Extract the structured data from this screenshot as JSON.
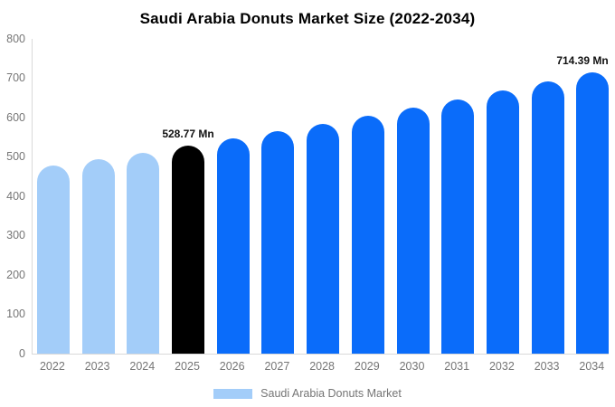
{
  "chart": {
    "title": "Saudi Arabia Donuts Market Size (2022-2034)",
    "legend": "Saudi Arabia Donuts Market"
  },
  "chart_data": {
    "type": "bar",
    "title": "Saudi Arabia Donuts Market Size (2022-2034)",
    "unit": "Mn",
    "xlabel": "",
    "ylabel": "",
    "ylim": [
      0,
      800
    ],
    "yticks": [
      0,
      100,
      200,
      300,
      400,
      500,
      600,
      700,
      800
    ],
    "grid": false,
    "legend_position": "bottom",
    "legend_entries": [
      "Saudi Arabia Donuts Market"
    ],
    "categories": [
      "2022",
      "2023",
      "2024",
      "2025",
      "2026",
      "2027",
      "2028",
      "2029",
      "2030",
      "2031",
      "2032",
      "2033",
      "2034"
    ],
    "values": [
      478.3,
      494.6,
      511.4,
      528.77,
      546.8,
      565.3,
      584.6,
      604.4,
      625.0,
      646.2,
      668.2,
      690.9,
      714.39
    ],
    "points": [
      {
        "year": "2022",
        "value": 478.3,
        "segment": "historical"
      },
      {
        "year": "2023",
        "value": 494.6,
        "segment": "historical"
      },
      {
        "year": "2024",
        "value": 511.4,
        "segment": "historical"
      },
      {
        "year": "2025",
        "value": 528.77,
        "segment": "highlight",
        "label": "528.77 Mn"
      },
      {
        "year": "2026",
        "value": 546.8,
        "segment": "forecast"
      },
      {
        "year": "2027",
        "value": 565.3,
        "segment": "forecast"
      },
      {
        "year": "2028",
        "value": 584.6,
        "segment": "forecast"
      },
      {
        "year": "2029",
        "value": 604.4,
        "segment": "forecast"
      },
      {
        "year": "2030",
        "value": 625.0,
        "segment": "forecast"
      },
      {
        "year": "2031",
        "value": 646.2,
        "segment": "forecast"
      },
      {
        "year": "2032",
        "value": 668.2,
        "segment": "forecast"
      },
      {
        "year": "2033",
        "value": 690.9,
        "segment": "forecast"
      },
      {
        "year": "2034",
        "value": 714.39,
        "segment": "forecast",
        "label": "714.39 Mn"
      }
    ],
    "colors": {
      "historical": "#a3cdf9",
      "highlight": "#000000",
      "forecast": "#0a6cfa",
      "axis_line": "#d9d9d9",
      "tick_text": "#757575",
      "data_label_text": "#111111",
      "legend_swatch": "#a3cdf9"
    }
  }
}
